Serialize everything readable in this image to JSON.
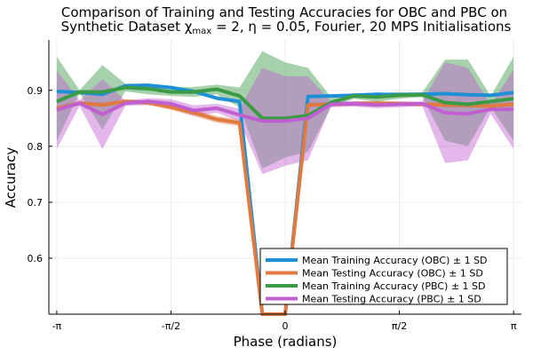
{
  "chart_data": {
    "type": "line",
    "title_line1": "Comparison of Training and Testing Accuracies for OBC and PBC on",
    "title_line2": "Synthetic Dataset χ",
    "title_sub": "max",
    "title_line2_rest": " = 2, η = 0.05, Fourier, 20 MPS Initialisations",
    "xlabel": "Phase (radians)",
    "ylabel": "Accuracy",
    "xlim": [
      -3.25,
      3.25
    ],
    "ylim": [
      0.5,
      0.99
    ],
    "x_ticks": [
      {
        "value": -3.14159,
        "label": "-π"
      },
      {
        "value": -1.5708,
        "label": "-π/2"
      },
      {
        "value": 0,
        "label": "0"
      },
      {
        "value": 1.5708,
        "label": "π/2"
      },
      {
        "value": 3.14159,
        "label": "π"
      }
    ],
    "y_ticks": [
      {
        "value": 0.6,
        "label": "0.6"
      },
      {
        "value": 0.7,
        "label": "0.7"
      },
      {
        "value": 0.8,
        "label": "0.8"
      },
      {
        "value": 0.9,
        "label": "0.9"
      }
    ],
    "grid": true,
    "legend_position": "bottom-right",
    "x": [
      -3.14159,
      -2.82743,
      -2.51327,
      -2.19911,
      -1.88496,
      -1.5708,
      -1.25664,
      -0.94248,
      -0.62832,
      -0.31416,
      0.0,
      0.31416,
      0.62832,
      0.94248,
      1.25664,
      1.5708,
      1.88496,
      2.19911,
      2.51327,
      2.82743,
      3.14159
    ],
    "series": [
      {
        "name": "Mean Training Accuracy (OBC) ± 1 SD",
        "color": "#1f8fd6",
        "mean": [
          0.898,
          0.896,
          0.893,
          0.908,
          0.909,
          0.905,
          0.898,
          0.886,
          0.88,
          0.5,
          0.5,
          0.889,
          0.89,
          0.891,
          0.893,
          0.892,
          0.893,
          0.894,
          0.892,
          0.891,
          0.896
        ],
        "lower": [
          0.895,
          0.893,
          0.89,
          0.905,
          0.906,
          0.902,
          0.895,
          0.883,
          0.877,
          0.5,
          0.5,
          0.886,
          0.887,
          0.888,
          0.89,
          0.889,
          0.89,
          0.891,
          0.889,
          0.888,
          0.893
        ],
        "upper": [
          0.901,
          0.899,
          0.896,
          0.911,
          0.912,
          0.908,
          0.901,
          0.889,
          0.883,
          0.5,
          0.5,
          0.892,
          0.893,
          0.894,
          0.896,
          0.895,
          0.896,
          0.897,
          0.895,
          0.894,
          0.899
        ]
      },
      {
        "name": "Mean Testing Accuracy (OBC) ± 1 SD",
        "color": "#e07a40",
        "mean": [
          0.868,
          0.877,
          0.874,
          0.88,
          0.878,
          0.87,
          0.86,
          0.848,
          0.842,
          0.5,
          0.5,
          0.874,
          0.875,
          0.876,
          0.877,
          0.876,
          0.875,
          0.874,
          0.873,
          0.872,
          0.875
        ],
        "lower": [
          0.864,
          0.873,
          0.87,
          0.876,
          0.874,
          0.865,
          0.854,
          0.842,
          0.836,
          0.5,
          0.5,
          0.87,
          0.871,
          0.872,
          0.873,
          0.872,
          0.871,
          0.87,
          0.869,
          0.868,
          0.871
        ],
        "upper": [
          0.872,
          0.881,
          0.878,
          0.884,
          0.882,
          0.875,
          0.866,
          0.854,
          0.848,
          0.5,
          0.5,
          0.878,
          0.879,
          0.88,
          0.881,
          0.88,
          0.879,
          0.878,
          0.877,
          0.876,
          0.879
        ]
      },
      {
        "name": "Mean Training Accuracy (PBC) ± 1 SD",
        "color": "#3a9a46",
        "mean": [
          0.88,
          0.897,
          0.897,
          0.905,
          0.903,
          0.897,
          0.897,
          0.902,
          0.89,
          0.85,
          0.85,
          0.855,
          0.878,
          0.89,
          0.888,
          0.891,
          0.892,
          0.878,
          0.875,
          0.88,
          0.885
        ],
        "lower": [
          0.81,
          0.895,
          0.83,
          0.898,
          0.893,
          0.89,
          0.888,
          0.893,
          0.87,
          0.76,
          0.78,
          0.79,
          0.87,
          0.885,
          0.88,
          0.885,
          0.888,
          0.81,
          0.8,
          0.87,
          0.81
        ],
        "upper": [
          0.96,
          0.9,
          0.945,
          0.912,
          0.912,
          0.905,
          0.906,
          0.91,
          0.905,
          0.97,
          0.95,
          0.94,
          0.888,
          0.895,
          0.895,
          0.897,
          0.896,
          0.955,
          0.955,
          0.89,
          0.96
        ]
      },
      {
        "name": "Mean Testing Accuracy (PBC) ± 1 SD",
        "color": "#c05fd0",
        "mean": [
          0.865,
          0.877,
          0.857,
          0.877,
          0.88,
          0.876,
          0.864,
          0.868,
          0.856,
          0.845,
          0.845,
          0.85,
          0.875,
          0.876,
          0.874,
          0.875,
          0.876,
          0.86,
          0.858,
          0.866,
          0.866
        ],
        "lower": [
          0.795,
          0.872,
          0.795,
          0.872,
          0.874,
          0.868,
          0.855,
          0.86,
          0.845,
          0.75,
          0.765,
          0.775,
          0.87,
          0.871,
          0.868,
          0.87,
          0.872,
          0.77,
          0.775,
          0.858,
          0.795
        ],
        "upper": [
          0.935,
          0.882,
          0.92,
          0.882,
          0.886,
          0.884,
          0.873,
          0.876,
          0.867,
          0.94,
          0.925,
          0.925,
          0.88,
          0.881,
          0.88,
          0.88,
          0.88,
          0.95,
          0.94,
          0.874,
          0.937
        ]
      }
    ]
  }
}
